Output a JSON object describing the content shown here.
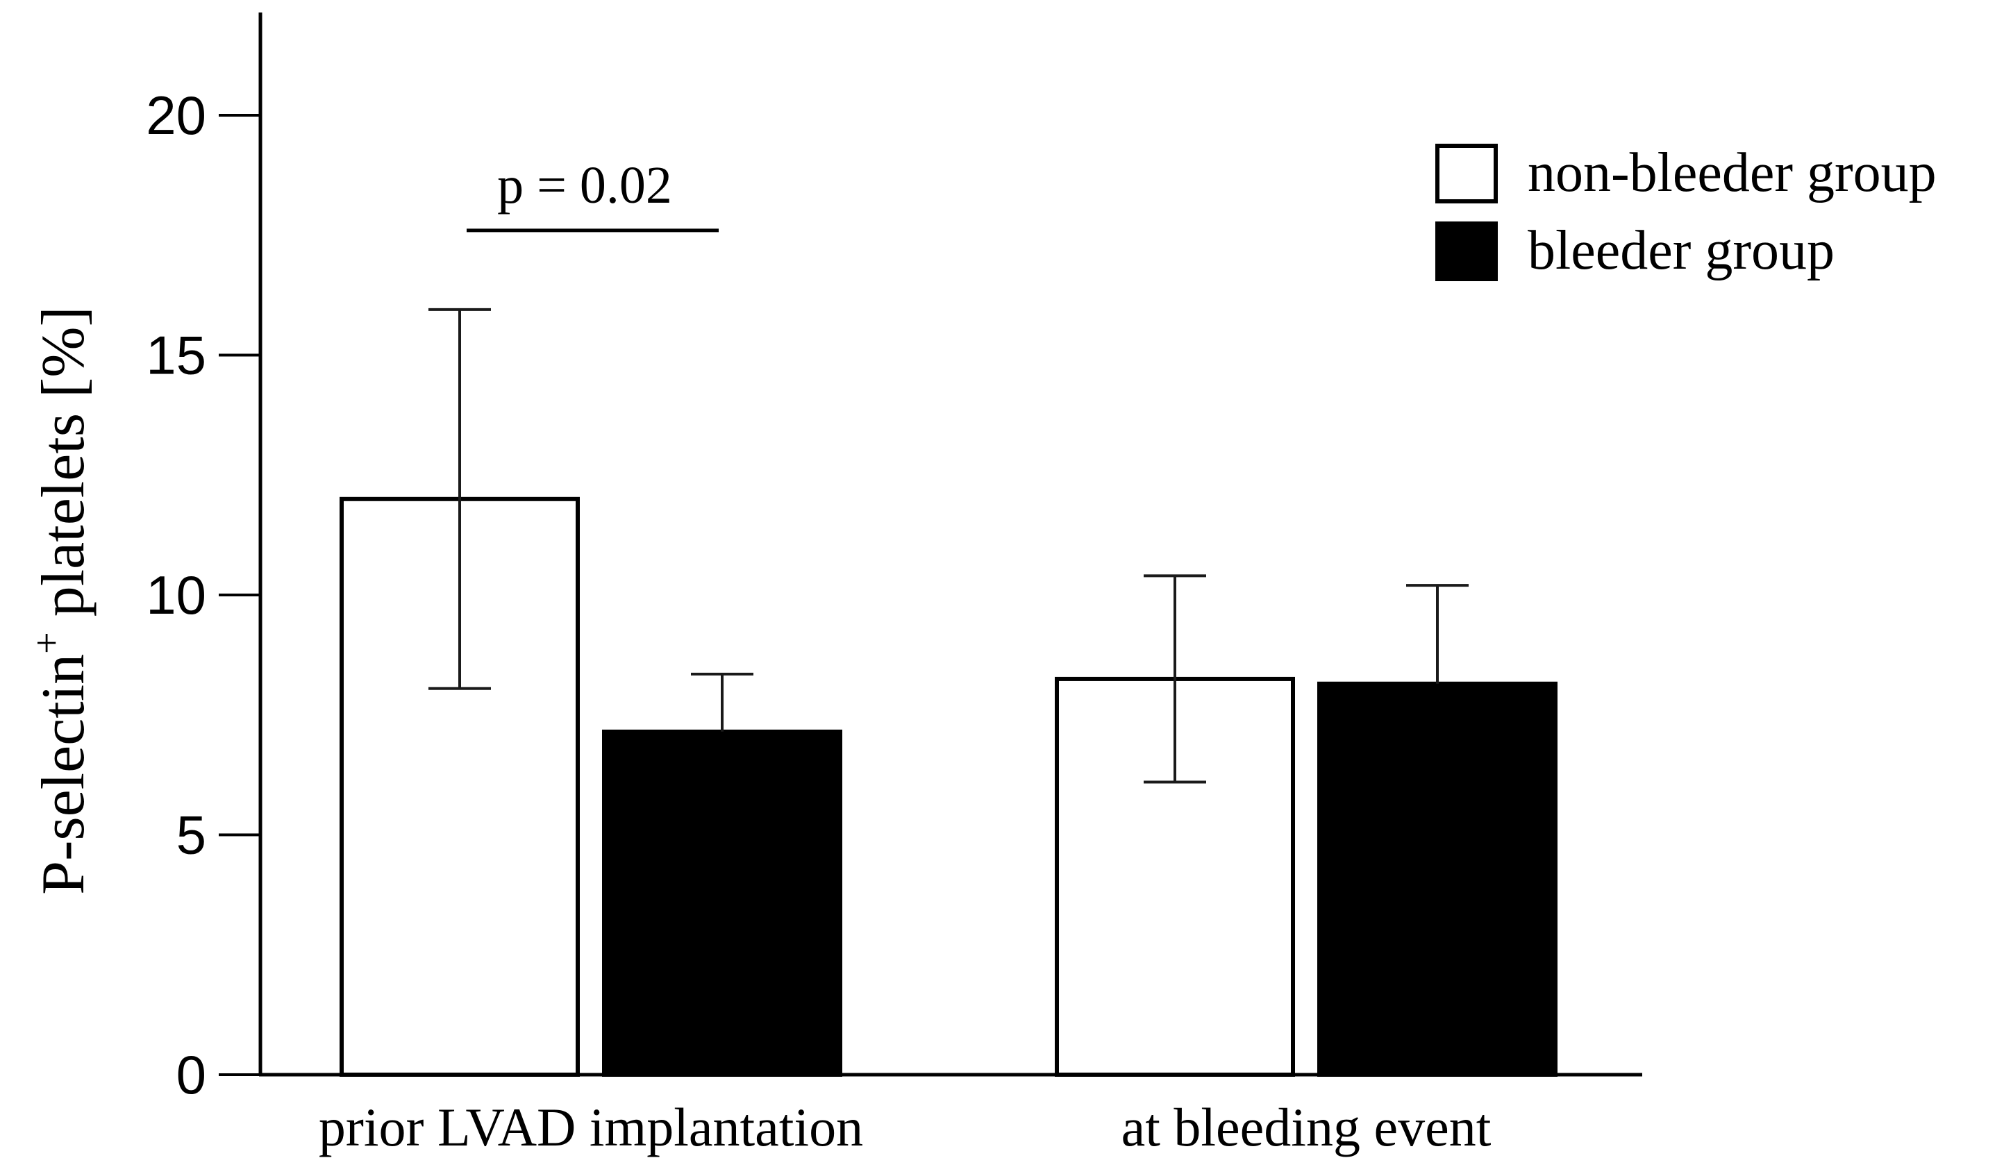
{
  "chart_data": {
    "type": "bar",
    "title": "",
    "xlabel": "",
    "ylabel": "P-selectin",
    "ylabel_superscript": "+",
    "ylabel_suffix": " platelets [%]",
    "ylim": [
      0,
      22
    ],
    "yticks": [
      "0",
      "5",
      "10",
      "15",
      "20"
    ],
    "categories": [
      "prior LVAD implantation",
      "at bleeding event"
    ],
    "series": [
      {
        "name": "non-bleeder group",
        "fill": "#ffffff",
        "stroke": "#000000",
        "values": [
          12.0,
          8.25
        ],
        "error_upper": [
          15.95,
          10.4
        ],
        "error_lower": [
          8.05,
          6.1
        ]
      },
      {
        "name": "bleeder group",
        "fill": "#000000",
        "stroke": "#000000",
        "values": [
          7.15,
          8.15
        ],
        "error_upper": [
          8.35,
          10.2
        ],
        "error_lower": [
          null,
          null
        ]
      }
    ],
    "annotations": [
      {
        "text": "p = 0.02",
        "category": "prior LVAD implantation",
        "y": 17.6
      }
    ],
    "legend_position": "top-right",
    "grid": false
  }
}
